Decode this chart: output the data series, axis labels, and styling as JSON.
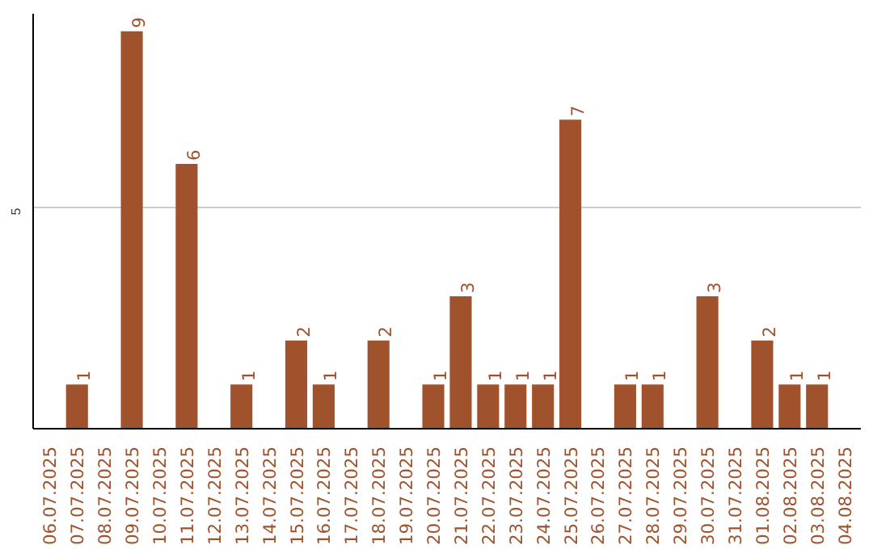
{
  "chart_data": {
    "type": "bar",
    "categories": [
      "06.07.2025",
      "07.07.2025",
      "08.07.2025",
      "09.07.2025",
      "10.07.2025",
      "11.07.2025",
      "12.07.2025",
      "13.07.2025",
      "14.07.2025",
      "15.07.2025",
      "16.07.2025",
      "17.07.2025",
      "18.07.2025",
      "19.07.2025",
      "20.07.2025",
      "21.07.2025",
      "22.07.2025",
      "23.07.2025",
      "24.07.2025",
      "25.07.2025",
      "26.07.2025",
      "27.07.2025",
      "28.07.2025",
      "29.07.2025",
      "30.07.2025",
      "31.07.2025",
      "01.08.2025",
      "02.08.2025",
      "03.08.2025",
      "04.08.2025"
    ],
    "values": [
      0,
      1,
      0,
      9,
      0,
      6,
      0,
      1,
      0,
      2,
      1,
      0,
      2,
      0,
      1,
      3,
      1,
      1,
      1,
      7,
      0,
      1,
      1,
      0,
      3,
      0,
      2,
      1,
      1,
      0
    ],
    "value_labels": [
      null,
      "1",
      null,
      "9",
      null,
      "6",
      null,
      "1",
      null,
      "2",
      "1",
      null,
      "2",
      null,
      "1",
      "3",
      "1",
      "1",
      "1",
      "7",
      null,
      "1",
      "1",
      null,
      "3",
      null,
      "2",
      "1",
      "1",
      null
    ],
    "color": "#a0522d",
    "ylim": [
      0,
      9.4
    ],
    "yticks": [
      5
    ],
    "grid": "y"
  }
}
